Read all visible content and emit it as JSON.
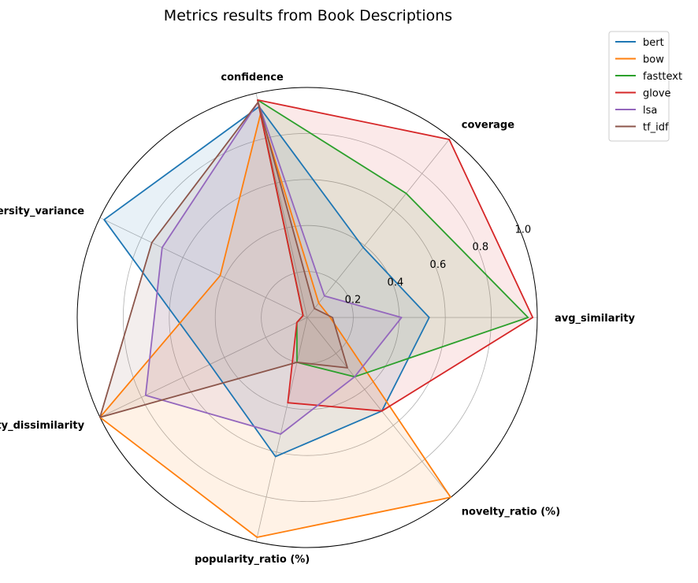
{
  "chart_data": {
    "type": "radar",
    "title": "Metrics results from Book Descriptions",
    "axes": [
      "avg_similarity",
      "coverage",
      "confidence",
      "diversity_variance",
      "diversity_dissimilarity",
      "popularity_ratio (%)",
      "novelty_ratio (%)"
    ],
    "rlim": [
      0,
      1.0
    ],
    "rticks": [
      0.2,
      0.4,
      0.6,
      0.8,
      1.0
    ],
    "rtick_labels": [
      "0.2",
      "0.4",
      "0.6",
      "0.8",
      "1.0"
    ],
    "grid": true,
    "legend_position": "top-right",
    "series": [
      {
        "name": "bert",
        "color": "#1f77b4",
        "values": [
          0.53,
          0.39,
          0.94,
          0.98,
          0.47,
          0.62,
          0.52
        ]
      },
      {
        "name": "bow",
        "color": "#ff7f0e",
        "values": [
          0.1,
          0.08,
          0.91,
          0.42,
          1.0,
          0.98,
          1.0
        ]
      },
      {
        "name": "fasttext",
        "color": "#2ca02c",
        "values": [
          0.96,
          0.69,
          0.97,
          0.02,
          0.05,
          0.2,
          0.33
        ]
      },
      {
        "name": "glove",
        "color": "#d62728",
        "values": [
          0.98,
          0.99,
          0.97,
          0.02,
          0.05,
          0.38,
          0.52
        ]
      },
      {
        "name": "lsa",
        "color": "#9467bd",
        "values": [
          0.41,
          0.12,
          0.96,
          0.7,
          0.78,
          0.52,
          0.33
        ]
      },
      {
        "name": "tf_idf",
        "color": "#8c564b",
        "values": [
          0.11,
          0.05,
          0.96,
          0.75,
          1.0,
          0.2,
          0.28
        ]
      }
    ]
  }
}
